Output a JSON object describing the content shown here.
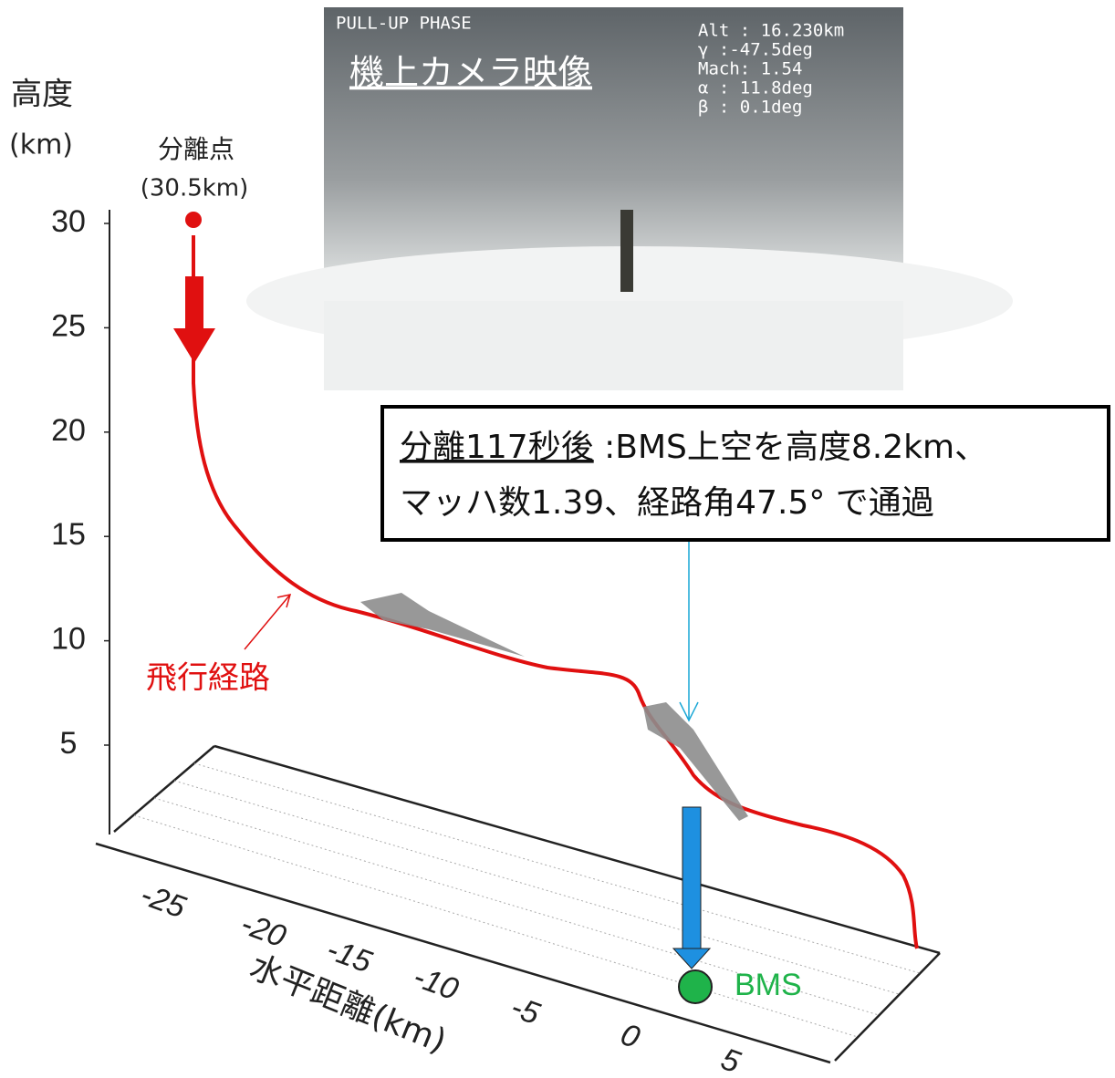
{
  "y_axis": {
    "label": "高度",
    "unit": "(km)",
    "ticks": [
      30,
      25,
      20,
      15,
      10,
      5
    ]
  },
  "x_axis": {
    "label": "水平距離(km)",
    "ticks": [
      -25,
      -20,
      -15,
      -10,
      -5,
      0,
      5
    ]
  },
  "separation_point": {
    "label": "分離点",
    "value": "(30.5km)"
  },
  "flight_path_label": "飛行経路",
  "bms_label": "BMS",
  "camera": {
    "title": "機上カメラ映像",
    "phase": "PULL-UP PHASE",
    "readouts": [
      "Alt : 16.230km",
      "γ :-47.5deg",
      "Mach: 1.54",
      "α : 11.8deg",
      "β : 0.1deg"
    ]
  },
  "callout": {
    "heading": "分離117秒後",
    "lines": [
      " :BMS上空を高度8.2km、",
      "マッハ数1.39、経路角47.5° で通過"
    ]
  }
}
